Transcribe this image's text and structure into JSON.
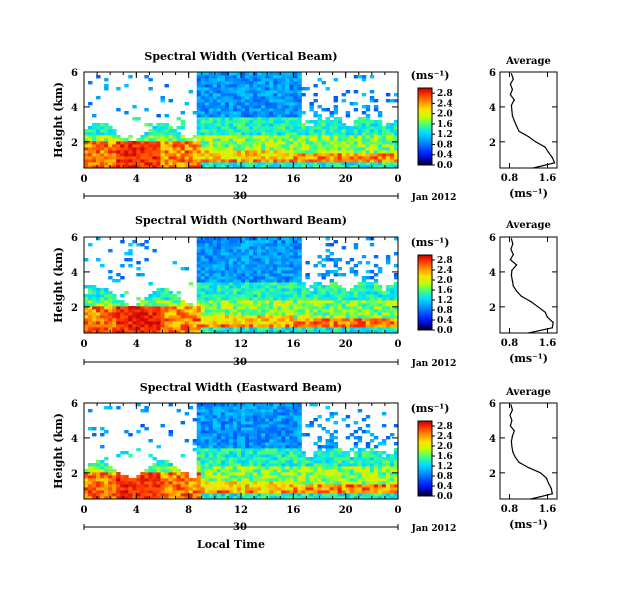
{
  "chart_data": [
    {
      "type": "heatmap",
      "title": "Spectral Width (Vertical Beam)",
      "ylabel": "Height (km)",
      "xlabel": "",
      "x_ticks": [
        "0",
        "4",
        "8",
        "12",
        "16",
        "20",
        "0"
      ],
      "y_ticks": [
        "2",
        "4",
        "6"
      ],
      "date_tick": "30",
      "date_label": "Jan 2012",
      "xlim": [
        0,
        24
      ],
      "ylim": [
        0.5,
        6
      ],
      "colorbar": {
        "unit": "(ms⁻¹)",
        "ticks": [
          "0.0",
          "0.4",
          "0.8",
          "1.2",
          "1.6",
          "2.0",
          "2.4",
          "2.8"
        ],
        "range": [
          0,
          3
        ]
      },
      "average": {
        "title": "Average",
        "xlabel": "(ms⁻¹)",
        "x_ticks": [
          "0.8",
          "1.6"
        ],
        "y_ticks": [
          "2",
          "4",
          "6"
        ],
        "xlim": [
          0.6,
          1.8
        ],
        "ylim": [
          0.5,
          6
        ],
        "y": [
          0.5,
          0.8,
          1.1,
          1.4,
          1.7,
          2.0,
          2.3,
          2.6,
          2.9,
          3.2,
          3.5,
          3.8,
          4.1,
          4.4,
          4.7,
          5.0,
          5.3,
          5.6,
          5.9
        ],
        "x": [
          1.3,
          1.75,
          1.7,
          1.62,
          1.55,
          1.35,
          1.2,
          1.0,
          0.95,
          0.9,
          0.86,
          0.85,
          0.84,
          0.9,
          0.82,
          0.86,
          0.82,
          0.88,
          0.84
        ]
      }
    },
    {
      "type": "heatmap",
      "title": "Spectral Width (Northward Beam)",
      "ylabel": "Height (km)",
      "xlabel": "",
      "x_ticks": [
        "0",
        "4",
        "8",
        "12",
        "16",
        "20",
        "0"
      ],
      "y_ticks": [
        "2",
        "4",
        "6"
      ],
      "date_tick": "30",
      "date_label": "Jan 2012",
      "xlim": [
        0,
        24
      ],
      "ylim": [
        0.5,
        6
      ],
      "colorbar": {
        "unit": "(ms⁻¹)",
        "ticks": [
          "0.0",
          "0.4",
          "0.8",
          "1.2",
          "1.6",
          "2.0",
          "2.4",
          "2.8"
        ],
        "range": [
          0,
          3
        ]
      },
      "average": {
        "title": "Average",
        "xlabel": "(ms⁻¹)",
        "x_ticks": [
          "0.8",
          "1.6"
        ],
        "y_ticks": [
          "2",
          "4",
          "6"
        ],
        "xlim": [
          0.6,
          1.8
        ],
        "ylim": [
          0.5,
          6
        ],
        "y": [
          0.5,
          0.8,
          1.1,
          1.4,
          1.7,
          2.0,
          2.3,
          2.6,
          2.9,
          3.2,
          3.5,
          3.8,
          4.1,
          4.4,
          4.7,
          5.0,
          5.3,
          5.6,
          5.9
        ],
        "x": [
          1.2,
          1.7,
          1.72,
          1.6,
          1.55,
          1.4,
          1.25,
          1.05,
          0.95,
          0.88,
          0.86,
          0.84,
          0.85,
          0.95,
          0.82,
          0.88,
          0.83,
          0.87,
          0.84
        ]
      }
    },
    {
      "type": "heatmap",
      "title": "Spectral Width (Eastward Beam)",
      "ylabel": "Height (km)",
      "xlabel": "Local Time",
      "x_ticks": [
        "0",
        "4",
        "8",
        "12",
        "16",
        "20",
        "0"
      ],
      "y_ticks": [
        "2",
        "4",
        "6"
      ],
      "date_tick": "30",
      "date_label": "Jan 2012",
      "xlim": [
        0,
        24
      ],
      "ylim": [
        0.5,
        6
      ],
      "colorbar": {
        "unit": "(ms⁻¹)",
        "ticks": [
          "0.0",
          "0.4",
          "0.8",
          "1.2",
          "1.6",
          "2.0",
          "2.4",
          "2.8"
        ],
        "range": [
          0,
          3
        ]
      },
      "average": {
        "title": "Average",
        "xlabel": "(ms⁻¹)",
        "x_ticks": [
          "0.8",
          "1.6"
        ],
        "y_ticks": [
          "2",
          "4",
          "6"
        ],
        "xlim": [
          0.6,
          1.8
        ],
        "ylim": [
          0.5,
          6
        ],
        "y": [
          0.5,
          0.8,
          1.1,
          1.4,
          1.7,
          2.0,
          2.3,
          2.6,
          2.9,
          3.2,
          3.5,
          3.8,
          4.1,
          4.4,
          4.7,
          5.0,
          5.3,
          5.6,
          5.9
        ],
        "x": [
          1.25,
          1.7,
          1.68,
          1.62,
          1.58,
          1.45,
          1.2,
          1.0,
          0.92,
          0.87,
          0.85,
          0.84,
          0.86,
          0.9,
          0.82,
          0.85,
          0.81,
          0.86,
          0.83
        ]
      }
    }
  ]
}
